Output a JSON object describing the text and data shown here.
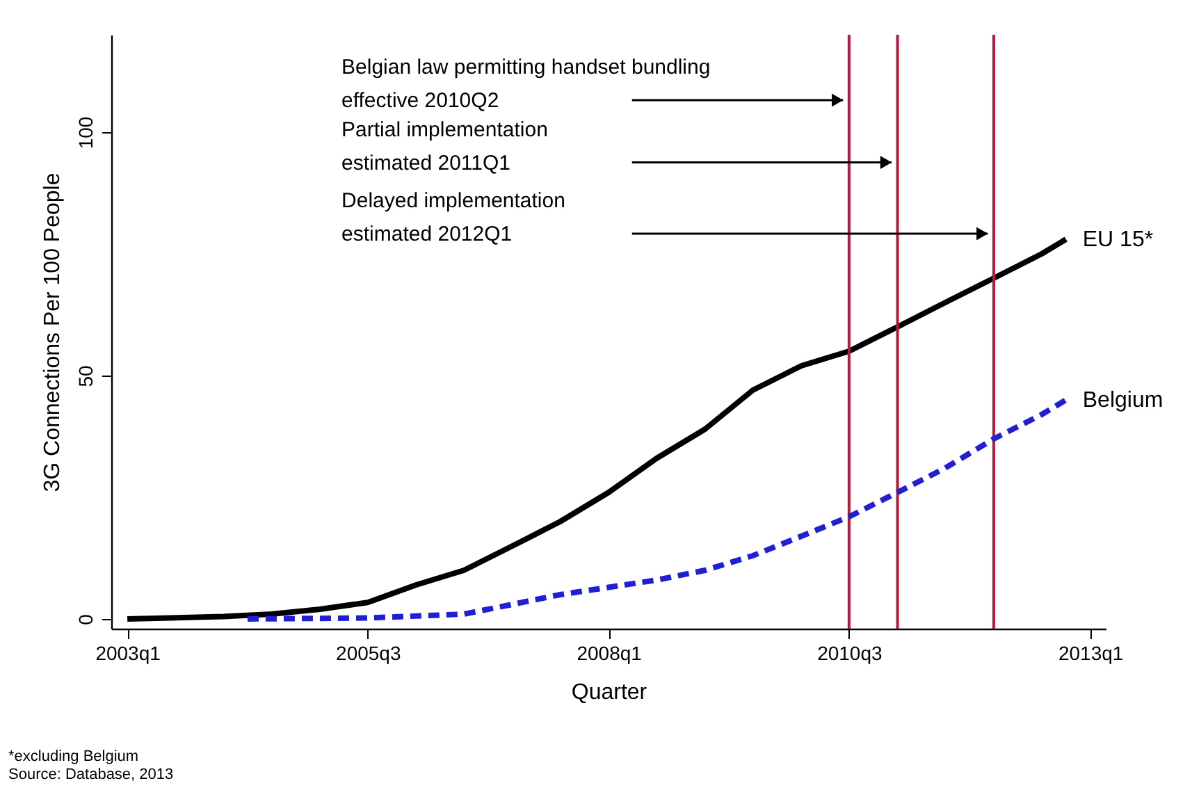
{
  "chart_data": {
    "type": "line",
    "xlabel": "Quarter",
    "ylabel": "3G Connections Per 100 People",
    "xlim": [
      "2002-11",
      "2013-03"
    ],
    "xticks": [
      {
        "value": "2003-01",
        "label": "2003q1"
      },
      {
        "value": "2005-07",
        "label": "2005q3"
      },
      {
        "value": "2008-01",
        "label": "2008q1"
      },
      {
        "value": "2010-07",
        "label": "2010q3"
      },
      {
        "value": "2013-01",
        "label": "2013q1"
      }
    ],
    "ylim": [
      -2,
      120
    ],
    "yticks": [
      0,
      50,
      100
    ],
    "grid": false,
    "series": [
      {
        "name": "EU 15*",
        "color": "#000000",
        "line_style": "solid",
        "x": [
          "2003-01",
          "2004-01",
          "2004-07",
          "2005-01",
          "2005-07",
          "2006-01",
          "2006-07",
          "2007-01",
          "2007-07",
          "2008-01",
          "2008-07",
          "2009-01",
          "2009-07",
          "2010-01",
          "2010-07",
          "2011-01",
          "2011-07",
          "2012-01",
          "2012-07",
          "2012-10"
        ],
        "values": [
          0,
          0.5,
          1,
          2,
          3.4,
          7,
          10,
          15,
          20,
          26,
          33,
          39,
          47,
          52,
          55,
          60,
          65,
          70,
          75,
          78
        ]
      },
      {
        "name": "Belgium",
        "color": "#1f1fd6",
        "line_style": "dashed",
        "x": [
          "2004-04",
          "2005-07",
          "2006-07",
          "2007-01",
          "2007-07",
          "2008-01",
          "2008-07",
          "2009-01",
          "2009-07",
          "2010-01",
          "2010-07",
          "2011-01",
          "2011-07",
          "2012-01",
          "2012-07",
          "2012-10"
        ],
        "values": [
          0,
          0.2,
          1,
          3,
          5,
          6.5,
          8,
          10,
          13,
          17,
          21,
          26,
          31,
          37,
          42,
          45
        ]
      }
    ],
    "ref_lines": [
      {
        "axis": "x",
        "value": "2010-07",
        "color": "#c0143c"
      },
      {
        "axis": "x",
        "value": "2011-01",
        "color": "#c0143c"
      },
      {
        "axis": "x",
        "value": "2012-01",
        "color": "#c0143c"
      }
    ],
    "annotations": [
      "Belgian law permitting handset bundling\neffective 2010Q2",
      "Partial implementation\nestimated 2011Q1",
      "Delayed implementation\nestimated 2012Q1",
      "*excluding Belgium",
      "Source: Database, 2013"
    ]
  }
}
